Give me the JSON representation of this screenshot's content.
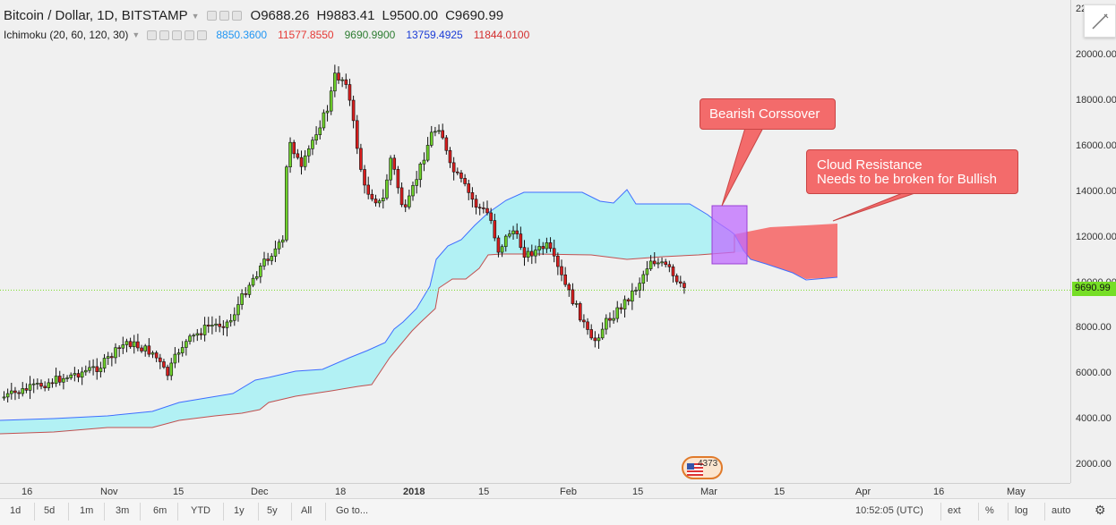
{
  "header": {
    "symbol": "Bitcoin / Dollar, 1D, BITSTAMP",
    "ohlc": {
      "open": "O9688.26",
      "high": "H9883.41",
      "low": "L9500.00",
      "close": "C9690.99"
    }
  },
  "indicator": {
    "label": "Ichimoku (20, 60, 120, 30)",
    "values": [
      {
        "text": "8850.3600",
        "color": "#2196f3"
      },
      {
        "text": "11577.8550",
        "color": "#e53935"
      },
      {
        "text": "9690.9900",
        "color": "#2e7d32"
      },
      {
        "text": "13759.4925",
        "color": "#1a3bd6"
      },
      {
        "text": "11844.0100",
        "color": "#d32f2f"
      }
    ]
  },
  "price_scale": {
    "ticks": [
      "20000.00",
      "18000.00",
      "16000.00",
      "14000.00",
      "12000.00",
      "10000.00",
      "8000.00",
      "6000.00",
      "4000.00",
      "2000.00"
    ],
    "top_partial": "22",
    "current_price": "9690.99"
  },
  "time_scale": {
    "labels": [
      {
        "text": "16",
        "bold": false
      },
      {
        "text": "Nov",
        "bold": false
      },
      {
        "text": "15",
        "bold": false
      },
      {
        "text": "Dec",
        "bold": false
      },
      {
        "text": "18",
        "bold": false
      },
      {
        "text": "2018",
        "bold": true
      },
      {
        "text": "15",
        "bold": false
      },
      {
        "text": "Feb",
        "bold": false
      },
      {
        "text": "15",
        "bold": false
      },
      {
        "text": "Mar",
        "bold": false
      },
      {
        "text": "15",
        "bold": false
      },
      {
        "text": "Apr",
        "bold": false
      },
      {
        "text": "16",
        "bold": false
      },
      {
        "text": "May",
        "bold": false
      }
    ]
  },
  "annotations": {
    "bearish": "Bearish Corssover",
    "cloud_line1": "Cloud Resistance",
    "cloud_line2": "Needs to be broken for Bullish"
  },
  "watermark": {
    "text": "4373"
  },
  "bottom_bar": {
    "ranges": [
      "1d",
      "5d",
      "1m",
      "3m",
      "6m",
      "YTD",
      "1y",
      "5y",
      "All"
    ],
    "goto": "Go to...",
    "time": "10:52:05 (UTC)",
    "toggles": [
      "ext",
      "%",
      "log",
      "auto"
    ]
  },
  "colors": {
    "up_candle": "#6ed02a",
    "down_candle": "#d91e1e",
    "cloud_bull": "#b2f1f4",
    "cloud_bear": "#f57878",
    "cloud_upper_line": "#3f6dff",
    "cloud_lower_line": "#c05050",
    "current_price_line": "#77dd22",
    "crossover_box": "#c06cff"
  }
}
